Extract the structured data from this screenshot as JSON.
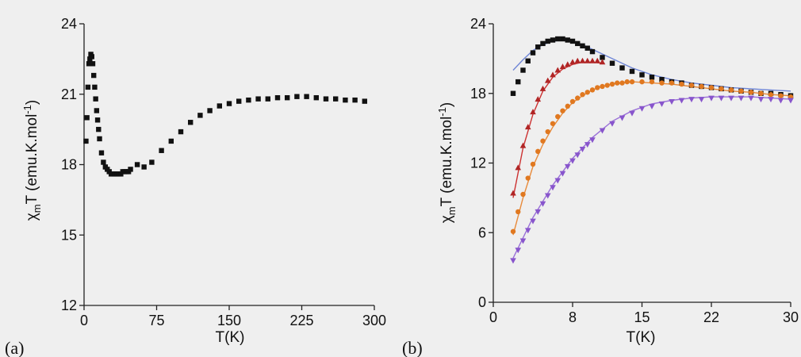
{
  "chart_data": [
    {
      "panel": "(a)",
      "type": "scatter",
      "xlabel": "T(K)",
      "ylabel_main": "χ",
      "ylabel_sub": "m",
      "ylabel_rest": "T (emu.K.mol",
      "ylabel_sup": "-1",
      "ylabel_close": ")",
      "xlim": [
        0,
        300
      ],
      "ylim": [
        12,
        24
      ],
      "xticks": [
        "0",
        "75",
        "150",
        "225",
        "300"
      ],
      "yticks": [
        "12",
        "15",
        "18",
        "21",
        "24"
      ],
      "grid": false,
      "series": [
        {
          "color": "#111111",
          "marker": "square",
          "x": [
            2,
            3,
            4,
            5,
            6,
            7,
            8,
            9,
            10,
            11,
            12,
            13,
            14,
            15,
            16,
            18,
            20,
            22,
            24,
            26,
            28,
            30,
            32,
            34,
            36,
            38,
            40,
            42,
            44,
            46,
            48,
            55,
            62,
            70,
            80,
            90,
            100,
            110,
            120,
            130,
            140,
            150,
            160,
            170,
            180,
            190,
            200,
            210,
            220,
            230,
            240,
            250,
            260,
            270,
            280,
            290
          ],
          "y": [
            19.0,
            20.0,
            21.3,
            22.3,
            22.5,
            22.7,
            22.6,
            22.3,
            21.8,
            21.3,
            20.8,
            20.3,
            19.9,
            19.5,
            19.1,
            18.5,
            18.1,
            17.9,
            17.8,
            17.7,
            17.6,
            17.6,
            17.6,
            17.6,
            17.6,
            17.6,
            17.7,
            17.7,
            17.7,
            17.7,
            17.8,
            18.0,
            17.9,
            18.1,
            18.6,
            19.0,
            19.4,
            19.8,
            20.1,
            20.3,
            20.5,
            20.6,
            20.7,
            20.75,
            20.8,
            20.8,
            20.85,
            20.85,
            20.9,
            20.9,
            20.85,
            20.8,
            20.8,
            20.75,
            20.75,
            20.7
          ]
        }
      ]
    },
    {
      "panel": "(b)",
      "type": "scatter",
      "xlabel": "T(K)",
      "ylabel_main": "χ",
      "ylabel_sub": "m",
      "ylabel_rest": "T (emu.K.mol",
      "ylabel_sup": "-1",
      "ylabel_close": ")",
      "xlim": [
        0,
        30
      ],
      "ylim": [
        0,
        24
      ],
      "xticks": [
        "0",
        "8",
        "15",
        "22",
        "30"
      ],
      "yticks": [
        "0",
        "6",
        "12",
        "18",
        "24"
      ],
      "grid": false,
      "series": [
        {
          "color": "#111111",
          "marker": "square",
          "x": [
            2,
            2.5,
            3,
            3.5,
            4,
            4.5,
            5,
            5.5,
            6,
            6.5,
            7,
            7.5,
            8,
            8.5,
            9,
            9.5,
            10,
            11,
            12,
            13,
            14,
            15,
            16,
            17,
            18,
            19,
            20,
            21,
            22,
            23,
            24,
            25,
            26,
            27,
            28,
            29,
            30
          ],
          "y": [
            18.0,
            19.0,
            20.0,
            20.8,
            21.5,
            22.0,
            22.3,
            22.5,
            22.6,
            22.7,
            22.7,
            22.6,
            22.5,
            22.3,
            22.1,
            21.9,
            21.6,
            21.1,
            20.6,
            20.2,
            19.9,
            19.6,
            19.4,
            19.2,
            19.0,
            18.9,
            18.7,
            18.6,
            18.5,
            18.4,
            18.3,
            18.2,
            18.1,
            18.0,
            18.0,
            17.9,
            17.8
          ]
        },
        {
          "color": "#b02525",
          "marker": "triangle-up",
          "x": [
            2,
            2.5,
            3,
            3.5,
            4,
            4.5,
            5,
            5.5,
            6,
            6.5,
            7,
            7.5,
            8,
            8.5,
            9,
            9.5,
            10,
            10.5,
            11
          ],
          "y": [
            9.4,
            11.6,
            13.5,
            15.1,
            16.4,
            17.5,
            18.4,
            19.1,
            19.6,
            20.0,
            20.3,
            20.5,
            20.7,
            20.8,
            20.8,
            20.8,
            20.8,
            20.8,
            20.7
          ]
        },
        {
          "color": "#e07820",
          "marker": "circle",
          "x": [
            2,
            2.5,
            3,
            3.5,
            4,
            4.5,
            5,
            5.5,
            6,
            6.5,
            7,
            7.5,
            8,
            8.5,
            9,
            9.5,
            10,
            10.5,
            11,
            11.5,
            12,
            12.5,
            13,
            13.5,
            14,
            15,
            16,
            17,
            18,
            19,
            20,
            21,
            22,
            23,
            24,
            25,
            26,
            27,
            28,
            29,
            30
          ],
          "y": [
            6.1,
            7.8,
            9.3,
            10.7,
            11.9,
            13.0,
            13.9,
            14.7,
            15.4,
            16.0,
            16.5,
            16.9,
            17.3,
            17.6,
            17.9,
            18.1,
            18.3,
            18.5,
            18.6,
            18.7,
            18.8,
            18.9,
            18.9,
            19.0,
            19.0,
            19.0,
            19.0,
            18.9,
            18.9,
            18.8,
            18.7,
            18.6,
            18.5,
            18.4,
            18.3,
            18.2,
            18.1,
            18.0,
            17.9,
            17.8,
            17.7
          ]
        },
        {
          "color": "#8855cc",
          "marker": "triangle-down",
          "x": [
            2,
            2.5,
            3,
            3.5,
            4,
            4.5,
            5,
            5.5,
            6,
            6.5,
            7,
            7.5,
            8,
            8.5,
            9,
            9.5,
            10,
            11,
            12,
            13,
            14,
            15,
            16,
            17,
            18,
            19,
            20,
            21,
            22,
            23,
            24,
            25,
            26,
            27,
            28,
            29,
            30
          ],
          "y": [
            3.6,
            4.5,
            5.3,
            6.2,
            7.0,
            7.8,
            8.5,
            9.2,
            9.9,
            10.5,
            11.1,
            11.7,
            12.2,
            12.7,
            13.2,
            13.6,
            14.0,
            14.8,
            15.4,
            15.9,
            16.3,
            16.7,
            16.9,
            17.1,
            17.3,
            17.4,
            17.5,
            17.5,
            17.6,
            17.6,
            17.6,
            17.6,
            17.6,
            17.5,
            17.5,
            17.4,
            17.4
          ]
        }
      ],
      "fits": [
        {
          "color": "#6f86d6",
          "x": [
            2,
            3,
            4,
            5,
            6,
            7,
            8,
            9,
            10,
            12,
            14,
            16,
            18,
            20,
            22,
            24,
            26,
            28,
            30
          ],
          "y": [
            20.0,
            20.9,
            21.7,
            22.2,
            22.5,
            22.6,
            22.5,
            22.2,
            21.8,
            21.0,
            20.2,
            19.6,
            19.2,
            18.9,
            18.7,
            18.5,
            18.4,
            18.3,
            18.2
          ]
        },
        {
          "color": "#cc3030",
          "x": [
            2,
            3,
            4,
            5,
            6,
            7,
            8,
            9,
            10,
            11
          ],
          "y": [
            9.0,
            13.3,
            16.2,
            18.2,
            19.4,
            20.1,
            20.5,
            20.7,
            20.7,
            20.6
          ]
        },
        {
          "color": "#e88a3a",
          "x": [
            2,
            3,
            4,
            5,
            6,
            7,
            8,
            9,
            10,
            11,
            12,
            13,
            14,
            16,
            18,
            20,
            22,
            24,
            26,
            28,
            30
          ],
          "y": [
            5.8,
            9.0,
            11.7,
            13.6,
            15.1,
            16.3,
            17.2,
            17.8,
            18.3,
            18.6,
            18.8,
            18.9,
            19.0,
            18.9,
            18.8,
            18.6,
            18.4,
            18.2,
            18.1,
            17.9,
            17.8
          ]
        },
        {
          "color": "#9a70d8",
          "x": [
            2,
            4,
            6,
            8,
            10,
            12,
            14,
            16,
            18,
            20,
            22,
            24,
            26,
            28,
            30
          ],
          "y": [
            3.8,
            7.3,
            10.1,
            12.4,
            14.2,
            15.6,
            16.5,
            17.1,
            17.4,
            17.6,
            17.7,
            17.7,
            17.7,
            17.6,
            17.5
          ]
        }
      ]
    }
  ]
}
